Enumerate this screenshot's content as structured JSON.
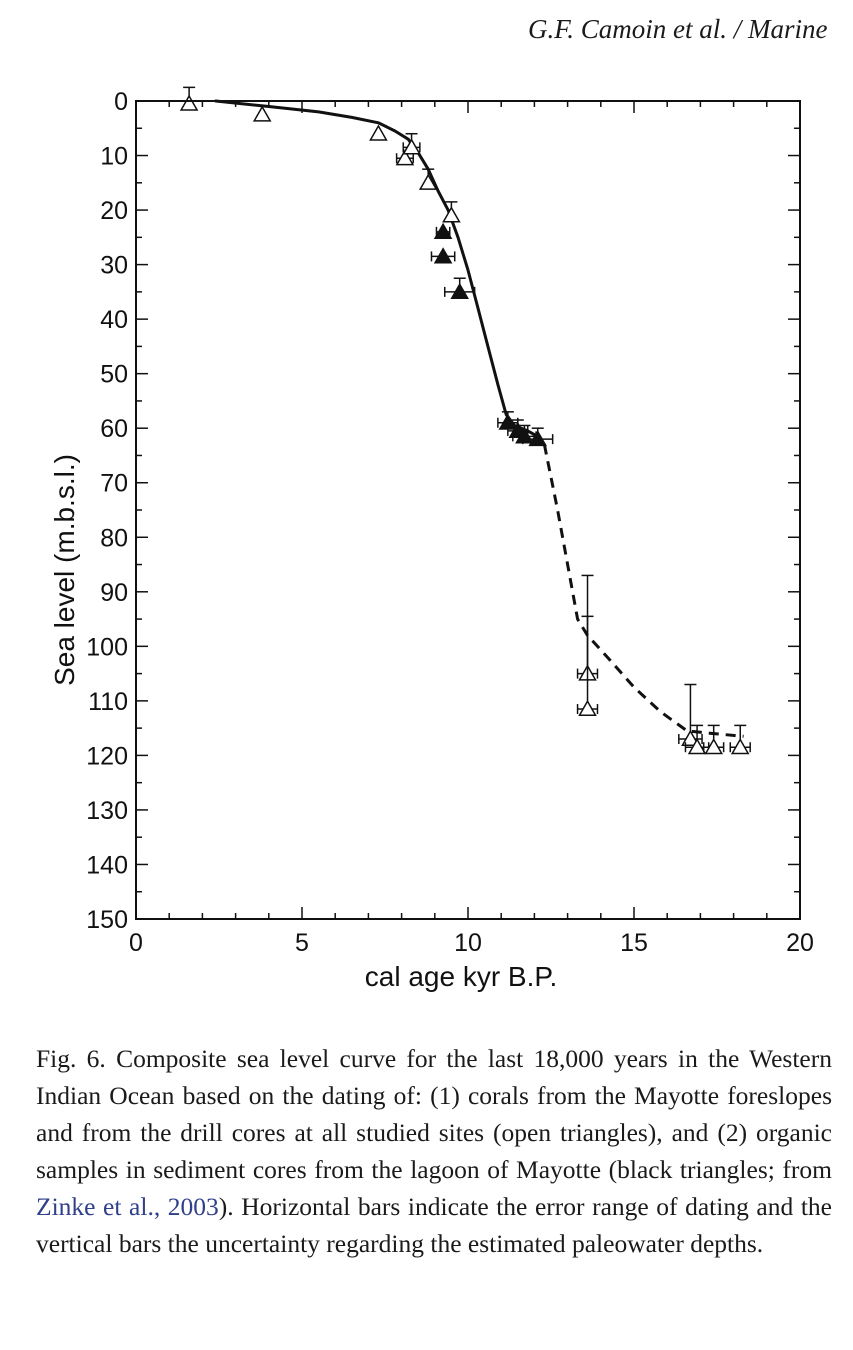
{
  "header": {
    "running_title": "G.F. Camoin et al. / Marine"
  },
  "chart_data": {
    "type": "scatter",
    "xlabel": "cal age kyr B.P.",
    "ylabel": "Sea level (m.b.s.l.)",
    "xlim": [
      0,
      20
    ],
    "ylim": [
      0,
      150
    ],
    "y_inverted": true,
    "x_ticks": [
      0,
      5,
      10,
      15,
      20
    ],
    "y_ticks": [
      0,
      10,
      20,
      30,
      40,
      50,
      60,
      70,
      80,
      90,
      100,
      110,
      120,
      130,
      140,
      150
    ],
    "grid": false,
    "legend": "none",
    "series": [
      {
        "name": "open triangles",
        "marker": "open-triangle",
        "points": [
          {
            "x": 1.6,
            "y": 0.5,
            "xerr": 0,
            "yerr_low": 3.0,
            "yerr_high": 0
          },
          {
            "x": 3.8,
            "y": 2.5,
            "xerr": 0,
            "yerr_low": 0,
            "yerr_high": 0
          },
          {
            "x": 7.3,
            "y": 6.0,
            "xerr": 0,
            "yerr_low": 0,
            "yerr_high": 0
          },
          {
            "x": 8.1,
            "y": 10.5,
            "xerr": 0.25,
            "yerr_low": 0,
            "yerr_high": 0
          },
          {
            "x": 8.3,
            "y": 8.5,
            "xerr": 0.25,
            "yerr_low": 2.5,
            "yerr_high": 0
          },
          {
            "x": 8.8,
            "y": 15.0,
            "xerr": 0,
            "yerr_low": 2.5,
            "yerr_high": 0
          },
          {
            "x": 9.5,
            "y": 21.0,
            "xerr": 0,
            "yerr_low": 2.5,
            "yerr_high": 0
          },
          {
            "x": 13.6,
            "y": 105.0,
            "xerr": 0.3,
            "yerr_low": 18.0,
            "yerr_high": 0
          },
          {
            "x": 13.6,
            "y": 111.5,
            "xerr": 0.3,
            "yerr_low": 17.0,
            "yerr_high": 0
          },
          {
            "x": 16.7,
            "y": 117.0,
            "xerr": 0.35,
            "yerr_low": 10.0,
            "yerr_high": 0
          },
          {
            "x": 16.9,
            "y": 118.5,
            "xerr": 0.35,
            "yerr_low": 4.0,
            "yerr_high": 0
          },
          {
            "x": 17.4,
            "y": 118.5,
            "xerr": 0.3,
            "yerr_low": 4.0,
            "yerr_high": 0
          },
          {
            "x": 18.2,
            "y": 118.5,
            "xerr": 0.3,
            "yerr_low": 4.0,
            "yerr_high": 0
          }
        ]
      },
      {
        "name": "black triangles",
        "marker": "filled-triangle",
        "points": [
          {
            "x": 9.25,
            "y": 24.0,
            "xerr": 0.2,
            "yerr_low": 0,
            "yerr_high": 0
          },
          {
            "x": 9.25,
            "y": 28.5,
            "xerr": 0.35,
            "yerr_low": 0,
            "yerr_high": 0
          },
          {
            "x": 9.75,
            "y": 35.0,
            "xerr": 0.45,
            "yerr_low": 2.5,
            "yerr_high": 0
          },
          {
            "x": 11.2,
            "y": 59.0,
            "xerr": 0.3,
            "yerr_low": 2.0,
            "yerr_high": 0
          },
          {
            "x": 11.5,
            "y": 60.5,
            "xerr": 0.3,
            "yerr_low": 2.0,
            "yerr_high": 0
          },
          {
            "x": 11.7,
            "y": 61.5,
            "xerr": 0.35,
            "yerr_low": 2.0,
            "yerr_high": 0
          },
          {
            "x": 12.1,
            "y": 62.0,
            "xerr": 0.45,
            "yerr_low": 2.0,
            "yerr_high": 0
          }
        ]
      }
    ],
    "curves": [
      {
        "style": "solid",
        "points": [
          [
            2.4,
            0
          ],
          [
            4.0,
            1.0
          ],
          [
            5.5,
            2.0
          ],
          [
            6.5,
            3.0
          ],
          [
            7.3,
            4.0
          ],
          [
            7.8,
            5.5
          ],
          [
            8.2,
            7.0
          ],
          [
            8.5,
            9.5
          ],
          [
            8.8,
            12.5
          ],
          [
            9.1,
            16.5
          ],
          [
            9.4,
            20.0
          ],
          [
            9.7,
            25.0
          ],
          [
            10.0,
            31.0
          ],
          [
            10.3,
            38.0
          ],
          [
            10.6,
            45.0
          ],
          [
            10.9,
            52.0
          ],
          [
            11.15,
            57.5
          ],
          [
            11.4,
            59.5
          ],
          [
            11.8,
            60.5
          ],
          [
            12.1,
            61.5
          ],
          [
            12.3,
            63.0
          ]
        ]
      },
      {
        "style": "dashed",
        "points": [
          [
            12.3,
            63.0
          ],
          [
            12.7,
            75.0
          ],
          [
            13.0,
            85.0
          ],
          [
            13.3,
            95.0
          ],
          [
            13.6,
            98.0
          ],
          [
            14.2,
            102.0
          ],
          [
            15.0,
            107.5
          ],
          [
            15.8,
            112.0
          ],
          [
            16.6,
            115.5
          ],
          [
            17.4,
            116.0
          ],
          [
            18.3,
            116.5
          ]
        ]
      }
    ]
  },
  "caption": {
    "text_before_link": "Fig. 6. Composite sea level curve for the last 18,000 years in the Western Indian Ocean based on the dating of: (1) corals from the Mayotte foreslopes and from the drill cores at all studied sites (open triangles), and (2) organic samples in sediment cores from the lagoon of Mayotte (black triangles; from ",
    "link_text": "Zinke et al., 2003",
    "text_after_link": "). Horizontal bars indicate the error range of dating and the vertical bars the uncertainty regarding the estimated paleowater depths."
  }
}
